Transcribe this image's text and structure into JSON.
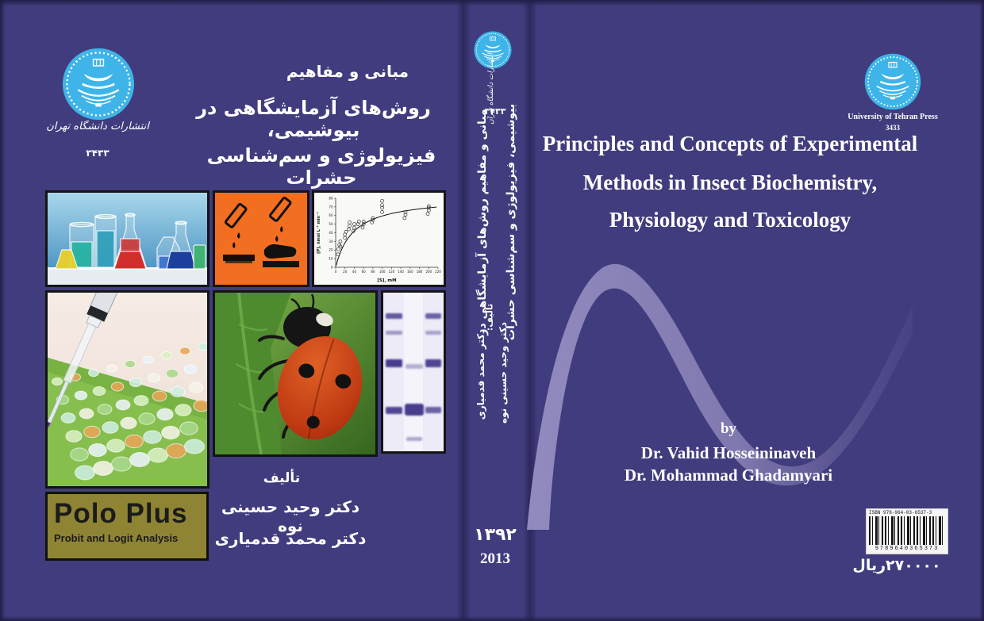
{
  "cover": {
    "colors": {
      "background": "#413c7d",
      "logo_blue": "#3eb4e8",
      "hazard_orange": "#f26f21",
      "polo_olive": "#8f8434",
      "swoosh_lavender": "#938dc0",
      "gel_band_purple": "#3d3488"
    },
    "icons": {
      "publisher_logo": "university-of-tehran-emblem",
      "hazard_pictogram": "corrosive-hazard-pictogram",
      "barcode": "ean13-barcode"
    },
    "front": {
      "publisher_fa": "انتشارات دانشگاه تهران",
      "publisher_code": "۳۴۳۳",
      "title_line1": "مبانی و مفاهیم",
      "title_line2": "روش‌های آزمایشگاهی در بیوشیمی،",
      "title_line3": "فیزیولوژی و سم‌شناسی حشرات",
      "byline_label": "تألیف",
      "author1_fa": "دکتر وحید حسینی نوه",
      "author2_fa": "دکتر محمد قدمیاری",
      "polo_title": "Polo Plus",
      "polo_subtitle": "Probit and Logit Analysis"
    },
    "spine": {
      "publisher_fa": "انتشارات دانشگاه تهران",
      "publisher_code": "۳۴۳۳",
      "title_col_left": "مبانی و مفاهیم روش‌های آزمایشگاهی در",
      "title_col_right": "بیوشیمی، فیزیولوژی و سم‌شناسی حشرات",
      "byline_label": "تألیف:",
      "author_col_right": "دکتر وحید حسینی نوه",
      "author_col_left": "دکتر محمد قدمیاری",
      "year_fa": "۱۳۹۲",
      "year_en": "2013"
    },
    "back": {
      "publisher_en": "University of Tehran Press",
      "publisher_code": "3433",
      "title_line1": "Principles and Concepts of Experimental",
      "title_line2": "Methods in Insect Biochemistry,",
      "title_line3": "Physiology and Toxicology",
      "by_label": "by",
      "author1_en": "Dr. Vahid Hosseininaveh",
      "author2_en": "Dr. Mohammad Ghadamyari",
      "isbn_label": "ISBN 978-964-03-6537-3",
      "isbn_digits": "9789640365373",
      "price": "۲۷۰۰۰۰ریال"
    }
  },
  "chart_data": {
    "type": "scatter",
    "title": "",
    "xlabel": "[S], mM",
    "ylabel": "[P], nmol L⁻¹ min⁻¹",
    "xlim": [
      0,
      220
    ],
    "ylim": [
      0,
      80
    ],
    "xtick_step": 20,
    "ytick_step": 10,
    "grid": false,
    "legend": "none",
    "fit_curve": {
      "model": "michaelis-menten",
      "vmax": 82,
      "km": 38
    },
    "points": [
      [
        5,
        15
      ],
      [
        6,
        21
      ],
      [
        8,
        26
      ],
      [
        10,
        24
      ],
      [
        10,
        30
      ],
      [
        20,
        34
      ],
      [
        20,
        38
      ],
      [
        22,
        41
      ],
      [
        28,
        44
      ],
      [
        30,
        48
      ],
      [
        30,
        52
      ],
      [
        38,
        42
      ],
      [
        40,
        46
      ],
      [
        40,
        50
      ],
      [
        48,
        50
      ],
      [
        50,
        53
      ],
      [
        58,
        46
      ],
      [
        60,
        50
      ],
      [
        60,
        53
      ],
      [
        78,
        52
      ],
      [
        80,
        55
      ],
      [
        80,
        57
      ],
      [
        100,
        64
      ],
      [
        100,
        69
      ],
      [
        100,
        72
      ],
      [
        100,
        77
      ],
      [
        148,
        57
      ],
      [
        150,
        61
      ],
      [
        150,
        64
      ],
      [
        198,
        62
      ],
      [
        200,
        66
      ],
      [
        200,
        69
      ],
      [
        200,
        71
      ]
    ]
  }
}
